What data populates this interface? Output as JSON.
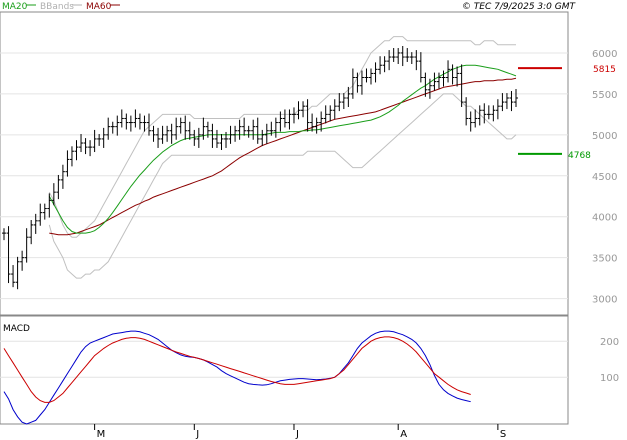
{
  "header": {
    "legend": [
      {
        "label": "MA20",
        "color": "#1a9e1a"
      },
      {
        "label": "BBands",
        "color": "#b0b0b0"
      },
      {
        "label": "MA60",
        "color": "#8b0000"
      }
    ],
    "timestamp": "© TEC 7/9/2025 3:0 GMT"
  },
  "chart_data": [
    {
      "type": "ohlc",
      "ylim": [
        2800,
        6500
      ],
      "yticks": [
        3000,
        3500,
        4000,
        4500,
        5000,
        5500,
        6000
      ],
      "x_month_labels": [
        {
          "label": "M",
          "index": 20
        },
        {
          "label": "J",
          "index": 42
        },
        {
          "label": "J",
          "index": 64
        },
        {
          "label": "A",
          "index": 87
        },
        {
          "label": "S",
          "index": 109
        }
      ],
      "n_periods": 114,
      "price_close": [
        3800,
        3300,
        3200,
        3450,
        3500,
        3750,
        3900,
        3950,
        4050,
        4100,
        4200,
        4300,
        4450,
        4550,
        4700,
        4800,
        4850,
        4900,
        4850,
        4850,
        4950,
        4950,
        5000,
        5100,
        5100,
        5150,
        5200,
        5150,
        5150,
        5200,
        5150,
        5150,
        5050,
        5000,
        4950,
        5000,
        5050,
        5000,
        5100,
        5150,
        5050,
        5000,
        4950,
        5000,
        5100,
        5050,
        4950,
        4900,
        4950,
        4950,
        5000,
        5050,
        5100,
        5050,
        5050,
        5100,
        4950,
        5000,
        5050,
        5050,
        5150,
        5200,
        5150,
        5250,
        5250,
        5300,
        5350,
        5150,
        5100,
        5150,
        5200,
        5250,
        5300,
        5350,
        5400,
        5450,
        5500,
        5700,
        5600,
        5700,
        5700,
        5750,
        5800,
        5850,
        5900,
        5950,
        5950,
        6000,
        5950,
        5950,
        5950,
        5900,
        5700,
        5550,
        5600,
        5650,
        5700,
        5700,
        5800,
        5700,
        5750,
        5400,
        5200,
        5150,
        5200,
        5300,
        5250,
        5250,
        5300,
        5350,
        5400,
        5450,
        5400,
        5450
      ],
      "ma20": [
        4250,
        4150,
        4050,
        3950,
        3870,
        3820,
        3800,
        3800,
        3800,
        3810,
        3830,
        3870,
        3920,
        3980,
        4050,
        4130,
        4210,
        4290,
        4370,
        4440,
        4510,
        4570,
        4630,
        4690,
        4740,
        4790,
        4830,
        4870,
        4900,
        4930,
        4950,
        4960,
        4970,
        4980,
        4990,
        5000,
        5000,
        5000,
        5000,
        5000,
        5000,
        5000,
        5000,
        5000,
        5000,
        5000,
        5000,
        5000,
        5010,
        5020,
        5030,
        5030,
        5030,
        5040,
        5040,
        5040,
        5050,
        5050,
        5060,
        5060,
        5070,
        5080,
        5090,
        5100,
        5110,
        5120,
        5130,
        5140,
        5150,
        5160,
        5170,
        5180,
        5200,
        5220,
        5250,
        5280,
        5320,
        5360,
        5410,
        5450,
        5490,
        5530,
        5570,
        5600,
        5640,
        5680,
        5710,
        5740,
        5770,
        5800,
        5820,
        5840,
        5850,
        5850,
        5850,
        5840,
        5830,
        5820,
        5810,
        5800,
        5780,
        5760,
        5740,
        5720
      ],
      "ma60": [
        3800,
        3790,
        3780,
        3780,
        3780,
        3790,
        3800,
        3820,
        3840,
        3860,
        3880,
        3900,
        3930,
        3960,
        3990,
        4020,
        4050,
        4080,
        4110,
        4140,
        4160,
        4190,
        4210,
        4240,
        4260,
        4280,
        4300,
        4320,
        4340,
        4360,
        4380,
        4400,
        4420,
        4440,
        4460,
        4480,
        4500,
        4530,
        4560,
        4600,
        4640,
        4680,
        4720,
        4750,
        4780,
        4810,
        4840,
        4870,
        4890,
        4910,
        4930,
        4950,
        4970,
        4990,
        5010,
        5030,
        5050,
        5070,
        5090,
        5110,
        5130,
        5150,
        5170,
        5190,
        5200,
        5210,
        5220,
        5230,
        5240,
        5250,
        5260,
        5270,
        5280,
        5300,
        5320,
        5340,
        5360,
        5380,
        5400,
        5420,
        5440,
        5460,
        5480,
        5500,
        5520,
        5540,
        5560,
        5580,
        5590,
        5600,
        5610,
        5620,
        5630,
        5640,
        5650,
        5650,
        5660,
        5660,
        5660,
        5670,
        5670,
        5680,
        5680,
        5690
      ],
      "bb_upper": [
        4300,
        4200,
        4050,
        3900,
        3800,
        3750,
        3750,
        3800,
        3850,
        3900,
        3950,
        4050,
        4150,
        4250,
        4350,
        4450,
        4550,
        4650,
        4750,
        4850,
        4950,
        5050,
        5100,
        5150,
        5200,
        5250,
        5250,
        5250,
        5250,
        5250,
        5250,
        5250,
        5200,
        5200,
        5200,
        5200,
        5200,
        5200,
        5200,
        5200,
        5200,
        5200,
        5200,
        5250,
        5250,
        5250,
        5250,
        5250,
        5250,
        5250,
        5250,
        5250,
        5250,
        5250,
        5250,
        5300,
        5300,
        5300,
        5350,
        5350,
        5400,
        5450,
        5500,
        5500,
        5500,
        5500,
        5550,
        5600,
        5700,
        5800,
        5900,
        6000,
        6050,
        6100,
        6150,
        6150,
        6200,
        6200,
        6200,
        6150,
        6150,
        6150,
        6150,
        6150,
        6150,
        6150,
        6150,
        6150,
        6150,
        6150,
        6150,
        6150,
        6150,
        6150,
        6100,
        6100,
        6150,
        6150,
        6150,
        6100,
        6100,
        6100,
        6100,
        6100
      ],
      "bb_lower": [
        3900,
        3700,
        3600,
        3500,
        3350,
        3300,
        3250,
        3250,
        3300,
        3300,
        3350,
        3350,
        3400,
        3450,
        3550,
        3650,
        3750,
        3850,
        3950,
        4050,
        4150,
        4250,
        4350,
        4450,
        4550,
        4650,
        4700,
        4750,
        4750,
        4750,
        4750,
        4750,
        4750,
        4750,
        4750,
        4750,
        4750,
        4750,
        4750,
        4750,
        4750,
        4750,
        4750,
        4750,
        4750,
        4750,
        4750,
        4750,
        4750,
        4750,
        4750,
        4750,
        4750,
        4750,
        4750,
        4750,
        4750,
        4800,
        4800,
        4800,
        4800,
        4800,
        4800,
        4800,
        4750,
        4700,
        4650,
        4600,
        4600,
        4600,
        4650,
        4700,
        4750,
        4800,
        4850,
        4900,
        4950,
        5000,
        5050,
        5100,
        5150,
        5200,
        5250,
        5300,
        5350,
        5400,
        5450,
        5500,
        5500,
        5500,
        5450,
        5400,
        5350,
        5350,
        5300,
        5250,
        5200,
        5150,
        5100,
        5050,
        5000,
        4950,
        4950,
        5000
      ],
      "resistance": {
        "value": 5815,
        "label": "5815",
        "color": "#cc0000"
      },
      "support": {
        "value": 4768,
        "label": "4768",
        "color": "#009900"
      }
    },
    {
      "type": "line",
      "title": "MACD",
      "ylim": [
        -30,
        270
      ],
      "yticks": [
        100,
        200
      ],
      "series": [
        {
          "color": "#0000cc",
          "values": [
            60,
            40,
            10,
            -10,
            -25,
            -30,
            -25,
            -20,
            -5,
            10,
            30,
            50,
            70,
            90,
            110,
            130,
            150,
            170,
            185,
            195,
            200,
            205,
            210,
            215,
            220,
            222,
            224,
            226,
            228,
            228,
            226,
            222,
            218,
            212,
            205,
            195,
            185,
            175,
            168,
            162,
            158,
            156,
            155,
            152,
            148,
            142,
            135,
            128,
            118,
            110,
            104,
            98,
            92,
            86,
            82,
            80,
            79,
            78,
            79,
            82,
            86,
            90,
            92,
            94,
            95,
            96,
            96,
            95,
            94,
            93,
            94,
            95,
            97,
            100,
            110,
            125,
            140,
            160,
            180,
            195,
            205,
            215,
            222,
            226,
            228,
            228,
            226,
            222,
            218,
            212,
            205,
            195,
            180,
            160,
            135,
            105,
            80,
            65,
            55,
            48,
            42,
            38,
            35,
            32
          ]
        },
        {
          "color": "#cc0000",
          "values": [
            180,
            160,
            140,
            120,
            100,
            80,
            60,
            45,
            35,
            30,
            30,
            35,
            45,
            55,
            70,
            85,
            100,
            115,
            130,
            145,
            160,
            170,
            180,
            188,
            195,
            200,
            205,
            208,
            210,
            210,
            208,
            205,
            200,
            195,
            190,
            185,
            180,
            175,
            170,
            166,
            162,
            158,
            155,
            152,
            148,
            144,
            140,
            136,
            132,
            128,
            124,
            120,
            116,
            112,
            108,
            104,
            100,
            96,
            92,
            88,
            85,
            82,
            80,
            80,
            80,
            82,
            84,
            86,
            88,
            90,
            92,
            94,
            96,
            100,
            110,
            120,
            135,
            150,
            165,
            180,
            190,
            200,
            206,
            210,
            212,
            212,
            210,
            206,
            200,
            192,
            182,
            170,
            155,
            140,
            125,
            110,
            100,
            90,
            80,
            72,
            65,
            60,
            56,
            52
          ]
        }
      ]
    }
  ]
}
